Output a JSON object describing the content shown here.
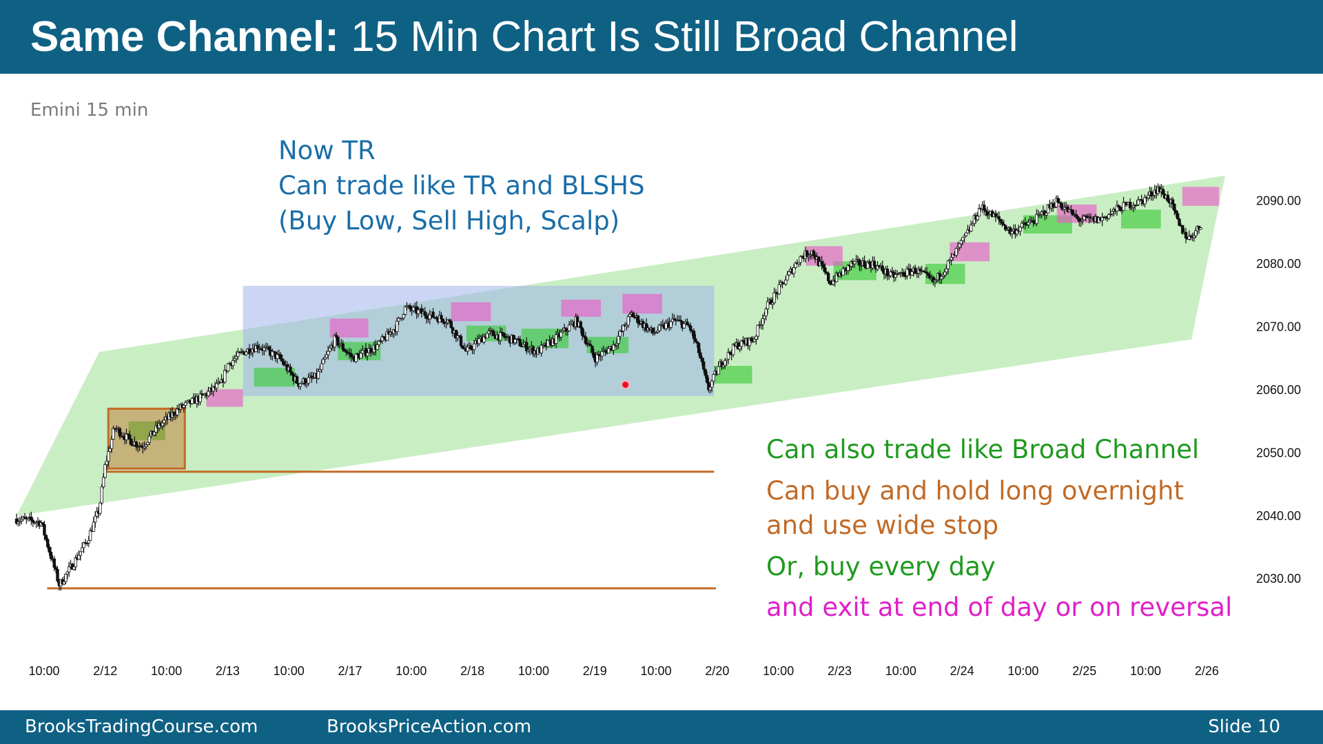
{
  "header": {
    "title_bold": "Same Channel:",
    "title_rest": " 15 Min Chart Is Still Broad Channel"
  },
  "chart_label": "Emini 15 min",
  "annotations": {
    "tr_lines": [
      "Now TR",
      "Can trade like TR and BLSHS",
      "(Buy Low, Sell High, Scalp)"
    ],
    "broad_channel": "Can also trade like Broad Channel",
    "hold_lines": [
      "Can buy and hold long overnight",
      "and use wide stop"
    ],
    "buy_every_day": "Or, buy every day",
    "exit": "and exit at end of day or on reversal"
  },
  "footer": {
    "left": "BrooksTradingCourse.com",
    "mid": "BrooksPriceAction.com",
    "right": "Slide  10"
  },
  "colors": {
    "header_bg": "#0f6184",
    "channel_fill": "#b8e8b0",
    "range_fill": "#9fb4ea",
    "buy_zone": "#3ecb3e",
    "sell_zone": "#e85fc8",
    "orange_line": "#c26a26",
    "candle_bull": "#ffffff",
    "candle_bear": "#111111"
  },
  "chart_data": {
    "type": "candlestick",
    "title": "",
    "instrument": "Emini 15 min",
    "y_ticks": [
      2030,
      2040,
      2050,
      2060,
      2070,
      2080,
      2090
    ],
    "y_tick_labels": [
      "2030.00",
      "2040.00",
      "2050.00",
      "2060.00",
      "2070.00",
      "2080.00",
      "2090.00"
    ],
    "ylim": [
      2018,
      2100
    ],
    "x_tick_labels": [
      "10:00",
      "2/12",
      "10:00",
      "2/13",
      "10:00",
      "2/17",
      "10:00",
      "2/18",
      "10:00",
      "2/19",
      "10:00",
      "2/20",
      "10:00",
      "2/23",
      "10:00",
      "2/24",
      "10:00",
      "2/25",
      "10:00",
      "2/26"
    ],
    "xlim": [
      -0.45,
      19.3
    ],
    "price_path": [
      [
        -0.45,
        2039.5
      ],
      [
        -0.05,
        2039
      ],
      [
        0.1,
        2034
      ],
      [
        0.25,
        2029
      ],
      [
        0.45,
        2032
      ],
      [
        0.7,
        2036
      ],
      [
        0.9,
        2041
      ],
      [
        1.0,
        2048
      ],
      [
        1.15,
        2054
      ],
      [
        1.4,
        2052
      ],
      [
        1.6,
        2051
      ],
      [
        1.85,
        2054
      ],
      [
        2.2,
        2057
      ],
      [
        2.6,
        2059
      ],
      [
        2.9,
        2061
      ],
      [
        3.0,
        2064
      ],
      [
        3.25,
        2066
      ],
      [
        3.5,
        2067
      ],
      [
        3.85,
        2065
      ],
      [
        4.15,
        2061
      ],
      [
        4.45,
        2062
      ],
      [
        4.75,
        2068
      ],
      [
        5.05,
        2065
      ],
      [
        5.45,
        2067
      ],
      [
        5.75,
        2070
      ],
      [
        5.9,
        2073
      ],
      [
        6.25,
        2072
      ],
      [
        6.6,
        2071
      ],
      [
        6.9,
        2066
      ],
      [
        7.25,
        2069
      ],
      [
        7.65,
        2068
      ],
      [
        8.05,
        2066
      ],
      [
        8.35,
        2068
      ],
      [
        8.7,
        2071
      ],
      [
        9.0,
        2065
      ],
      [
        9.3,
        2067
      ],
      [
        9.6,
        2072
      ],
      [
        9.95,
        2069
      ],
      [
        10.3,
        2071
      ],
      [
        10.55,
        2070
      ],
      [
        10.7,
        2066
      ],
      [
        10.85,
        2060
      ],
      [
        11.05,
        2064
      ],
      [
        11.3,
        2067
      ],
      [
        11.6,
        2068
      ],
      [
        11.8,
        2073
      ],
      [
        12.15,
        2078
      ],
      [
        12.35,
        2081
      ],
      [
        12.55,
        2082
      ],
      [
        12.85,
        2077
      ],
      [
        13.2,
        2080
      ],
      [
        13.55,
        2080
      ],
      [
        13.85,
        2078
      ],
      [
        14.25,
        2079
      ],
      [
        14.55,
        2077
      ],
      [
        14.85,
        2081
      ],
      [
        15.1,
        2085
      ],
      [
        15.3,
        2089
      ],
      [
        15.6,
        2087
      ],
      [
        15.8,
        2085
      ],
      [
        16.2,
        2087
      ],
      [
        16.55,
        2090
      ],
      [
        16.9,
        2087
      ],
      [
        17.25,
        2087
      ],
      [
        17.6,
        2089
      ],
      [
        17.95,
        2090
      ],
      [
        18.2,
        2092
      ],
      [
        18.4,
        2090
      ],
      [
        18.55,
        2086
      ],
      [
        18.7,
        2084
      ],
      [
        18.9,
        2086
      ]
    ],
    "channel": [
      [
        -0.45,
        2040
      ],
      [
        0.9,
        2066
      ],
      [
        19.3,
        2094
      ],
      [
        18.75,
        2068
      ]
    ],
    "trading_range": {
      "x": [
        3.25,
        10.95
      ],
      "y": [
        2059,
        2076.5
      ]
    },
    "breakout_box": {
      "x": [
        1.05,
        2.3
      ],
      "y": [
        2047.5,
        2057
      ]
    },
    "wide_stop_lines": [
      {
        "x": [
          1.0,
          10.95
        ],
        "y": 2047
      },
      {
        "x": [
          0.05,
          10.98
        ],
        "y": 2028.5
      }
    ],
    "buy_zones": [
      [
        1.38,
        1.98,
        2052,
        2055
      ],
      [
        3.43,
        4.1,
        2060.5,
        2063.5
      ],
      [
        4.8,
        5.5,
        2064.7,
        2067.6
      ],
      [
        6.9,
        7.55,
        2067.7,
        2070.2
      ],
      [
        7.8,
        8.57,
        2066.6,
        2069.7
      ],
      [
        8.87,
        9.55,
        2065.8,
        2068.4
      ],
      [
        10.95,
        11.57,
        2061,
        2063.8
      ],
      [
        12.9,
        13.6,
        2077.4,
        2080.4
      ],
      [
        14.4,
        15.05,
        2076.8,
        2080
      ],
      [
        16.0,
        16.8,
        2084.8,
        2087.7
      ],
      [
        17.6,
        18.25,
        2085.6,
        2088.6
      ]
    ],
    "sell_zones": [
      [
        2.65,
        3.25,
        2057.3,
        2060.1
      ],
      [
        4.67,
        5.3,
        2068.3,
        2071.3
      ],
      [
        6.65,
        7.3,
        2070.9,
        2073.9
      ],
      [
        8.45,
        9.1,
        2071.6,
        2074.3
      ],
      [
        9.45,
        10.1,
        2072.1,
        2075.2
      ],
      [
        12.45,
        13.05,
        2079.7,
        2082.8
      ],
      [
        14.8,
        15.45,
        2080.4,
        2083.4
      ],
      [
        16.55,
        17.2,
        2086.5,
        2089.4
      ],
      [
        18.6,
        19.2,
        2089.2,
        2092.2
      ]
    ],
    "marker": [
      9.5,
      2060.8
    ]
  }
}
